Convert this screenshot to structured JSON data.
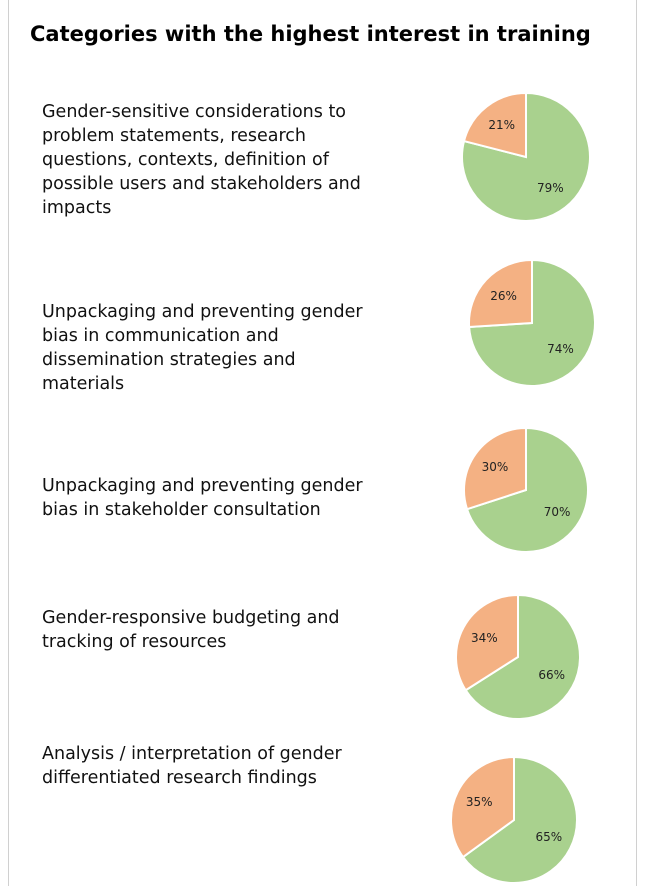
{
  "title": "Categories with the highest interest in training",
  "chart_data": [
    {
      "type": "pie",
      "title": "Gender-sensitive considerations to problem statements, research questions, contexts, definition of possible users and stakeholders and impacts",
      "values": [
        21,
        79
      ],
      "value_labels": [
        "21%",
        "79%"
      ],
      "colors": [
        "#f4b183",
        "#a9d18e"
      ]
    },
    {
      "type": "pie",
      "title": "Unpackaging and preventing gender bias in communication and dissemination strategies and materials",
      "values": [
        26,
        74
      ],
      "value_labels": [
        "26%",
        "74%"
      ],
      "colors": [
        "#f4b183",
        "#a9d18e"
      ]
    },
    {
      "type": "pie",
      "title": "Unpackaging and preventing gender bias in stakeholder consultation",
      "values": [
        30,
        70
      ],
      "value_labels": [
        "30%",
        "70%"
      ],
      "colors": [
        "#f4b183",
        "#a9d18e"
      ]
    },
    {
      "type": "pie",
      "title": "Gender-responsive budgeting and tracking of resources",
      "values": [
        34,
        66
      ],
      "value_labels": [
        "34%",
        "66%"
      ],
      "colors": [
        "#f4b183",
        "#a9d18e"
      ]
    },
    {
      "type": "pie",
      "title": "Analysis / interpretation of gender differentiated research findings",
      "values": [
        35,
        65
      ],
      "value_labels": [
        "35%",
        "65%"
      ],
      "colors": [
        "#f4b183",
        "#a9d18e"
      ]
    }
  ]
}
